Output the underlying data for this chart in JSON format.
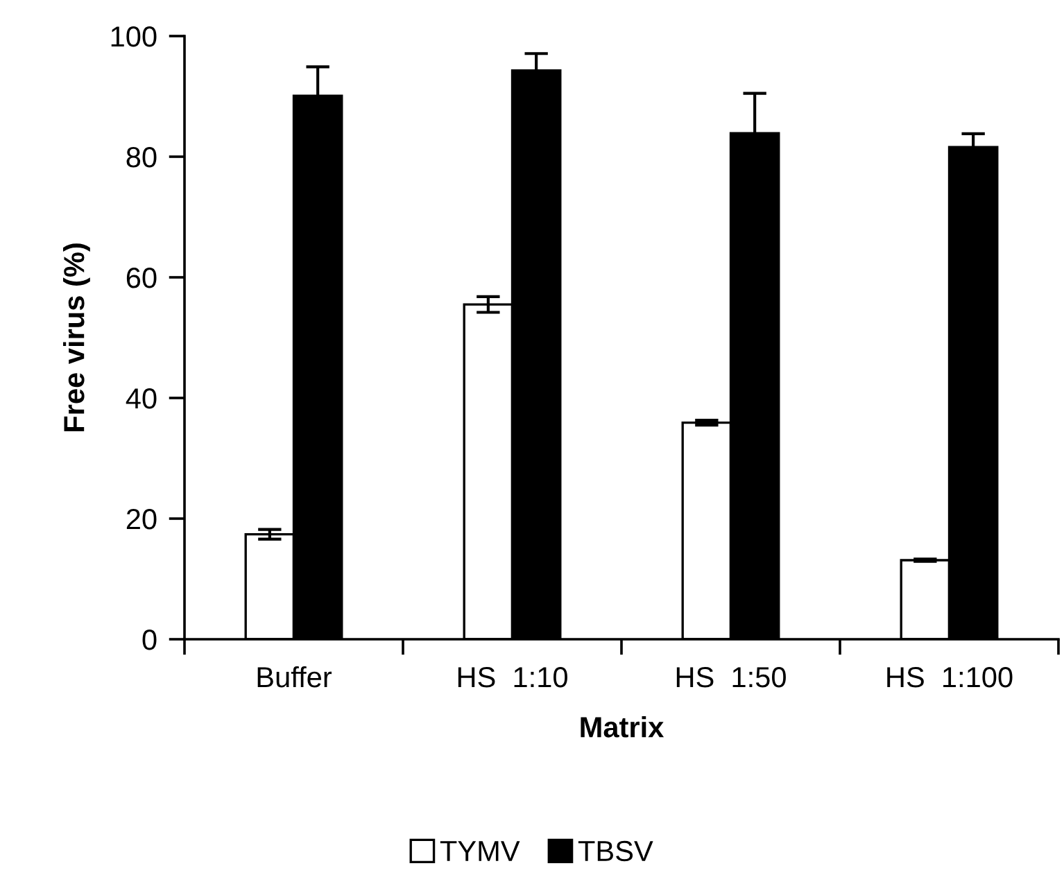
{
  "chart_data": {
    "type": "bar",
    "xlabel": "Matrix",
    "ylabel": "Free virus (%)",
    "categories": [
      "Buffer",
      "HS  1:10",
      "HS  1:50",
      "HS  1:100"
    ],
    "series": [
      {
        "name": "TYMV",
        "color": "#ffffff",
        "values": [
          17.4,
          55.5,
          35.9,
          13.1
        ],
        "errors": [
          0.8,
          1.3,
          0.4,
          0.2
        ]
      },
      {
        "name": "TBSV",
        "color": "#000000",
        "values": [
          90.1,
          94.3,
          83.9,
          81.6
        ],
        "errors": [
          4.8,
          2.8,
          6.6,
          2.2
        ]
      }
    ],
    "ylim": [
      0,
      100
    ],
    "yticks": [
      0,
      20,
      40,
      60,
      80,
      100
    ],
    "grid": false,
    "legend": "bottom"
  }
}
